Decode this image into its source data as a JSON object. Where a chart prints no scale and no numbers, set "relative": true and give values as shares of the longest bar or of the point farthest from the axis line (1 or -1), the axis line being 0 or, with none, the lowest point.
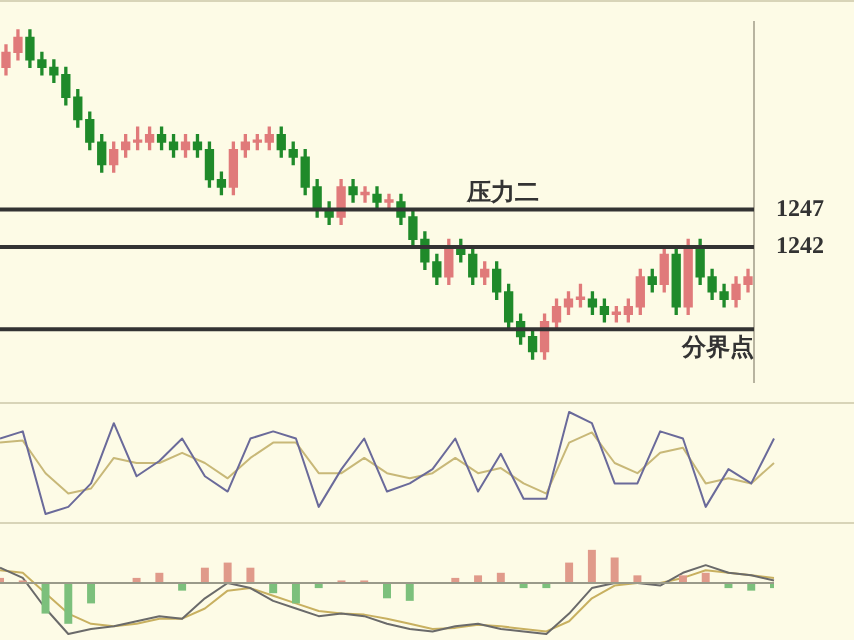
{
  "chart_data": [
    {
      "type": "candlestick",
      "categories": [
        null,
        null,
        null,
        null,
        null,
        null,
        null,
        null,
        null,
        null,
        null,
        null,
        null,
        null,
        null,
        null,
        null,
        null,
        null,
        null,
        null,
        null,
        null,
        null,
        null,
        null,
        null,
        null,
        null,
        null,
        null,
        null,
        null,
        null,
        null,
        null,
        null,
        null,
        null,
        null,
        null,
        null,
        null,
        null,
        null,
        null,
        null,
        null,
        null,
        null,
        null,
        null,
        null,
        null,
        null,
        null,
        null,
        null,
        null,
        null,
        null,
        null,
        null
      ],
      "ohlc": [
        [
          1266,
          1269,
          1265,
          1268
        ],
        [
          1268,
          1271,
          1267,
          1270
        ],
        [
          1270,
          1271,
          1266,
          1267
        ],
        [
          1267,
          1268,
          1265,
          1266
        ],
        [
          1266,
          1267,
          1264,
          1265
        ],
        [
          1265,
          1266,
          1261,
          1262
        ],
        [
          1262,
          1263,
          1258,
          1259
        ],
        [
          1259,
          1260,
          1255,
          1256
        ],
        [
          1256,
          1257,
          1252,
          1253
        ],
        [
          1253,
          1256,
          1252,
          1255
        ],
        [
          1255,
          1257,
          1254,
          1256
        ],
        [
          1256,
          1258,
          1255,
          1256
        ],
        [
          1256,
          1258,
          1255,
          1257
        ],
        [
          1257,
          1258,
          1255,
          1256
        ],
        [
          1256,
          1257,
          1254,
          1255
        ],
        [
          1255,
          1257,
          1254,
          1256
        ],
        [
          1256,
          1257,
          1254,
          1255
        ],
        [
          1255,
          1256,
          1250,
          1251
        ],
        [
          1251,
          1252,
          1249,
          1250
        ],
        [
          1250,
          1256,
          1249,
          1255
        ],
        [
          1255,
          1257,
          1254,
          1256
        ],
        [
          1256,
          1257,
          1255,
          1256
        ],
        [
          1256,
          1258,
          1255,
          1257
        ],
        [
          1257,
          1258,
          1254,
          1255
        ],
        [
          1255,
          1256,
          1253,
          1254
        ],
        [
          1254,
          1255,
          1249,
          1250
        ],
        [
          1250,
          1251,
          1246,
          1247
        ],
        [
          1247,
          1248,
          1245,
          1246
        ],
        [
          1246,
          1251,
          1245,
          1250
        ],
        [
          1250,
          1251,
          1248,
          1249
        ],
        [
          1249,
          1250,
          1248,
          1249
        ],
        [
          1249,
          1250,
          1247,
          1248
        ],
        [
          1248,
          1249,
          1247,
          1248
        ],
        [
          1248,
          1249,
          1245,
          1246
        ],
        [
          1246,
          1247,
          1242,
          1243
        ],
        [
          1243,
          1244,
          1239,
          1240
        ],
        [
          1240,
          1241,
          1237,
          1238
        ],
        [
          1238,
          1243,
          1237,
          1242
        ],
        [
          1242,
          1243,
          1240,
          1241
        ],
        [
          1241,
          1242,
          1237,
          1238
        ],
        [
          1238,
          1240,
          1237,
          1239
        ],
        [
          1239,
          1240,
          1235,
          1236
        ],
        [
          1236,
          1237,
          1231,
          1232
        ],
        [
          1232,
          1233,
          1229,
          1230
        ],
        [
          1230,
          1231,
          1227,
          1228
        ],
        [
          1228,
          1233,
          1227,
          1232
        ],
        [
          1232,
          1235,
          1231,
          1234
        ],
        [
          1234,
          1236,
          1233,
          1235
        ],
        [
          1235,
          1237,
          1234,
          1235
        ],
        [
          1235,
          1236,
          1233,
          1234
        ],
        [
          1234,
          1235,
          1232,
          1233
        ],
        [
          1233,
          1234,
          1232,
          1233
        ],
        [
          1233,
          1235,
          1232,
          1234
        ],
        [
          1234,
          1239,
          1233,
          1238
        ],
        [
          1238,
          1239,
          1236,
          1237
        ],
        [
          1237,
          1242,
          1236,
          1241
        ],
        [
          1241,
          1242,
          1233,
          1234
        ],
        [
          1234,
          1243,
          1233,
          1242
        ],
        [
          1242,
          1243,
          1237,
          1238
        ],
        [
          1238,
          1239,
          1235,
          1236
        ],
        [
          1236,
          1237,
          1234,
          1235
        ],
        [
          1235,
          1238,
          1234,
          1237
        ],
        [
          1237,
          1239,
          1236,
          1238
        ]
      ],
      "colors": [
        "#e07a7a",
        "#e07a7a",
        "#1f8a2a",
        "#1f8a2a",
        "#1f8a2a",
        "#1f8a2a",
        "#1f8a2a",
        "#1f8a2a",
        "#1f8a2a",
        "#e07a7a",
        "#e07a7a",
        "#e07a7a",
        "#e07a7a",
        "#1f8a2a",
        "#1f8a2a",
        "#e07a7a",
        "#1f8a2a",
        "#1f8a2a",
        "#1f8a2a",
        "#e07a7a",
        "#e07a7a",
        "#e07a7a",
        "#e07a7a",
        "#1f8a2a",
        "#1f8a2a",
        "#1f8a2a",
        "#1f8a2a",
        "#1f8a2a",
        "#e07a7a",
        "#1f8a2a",
        "#e07a7a",
        "#1f8a2a",
        "#e07a7a",
        "#1f8a2a",
        "#1f8a2a",
        "#1f8a2a",
        "#1f8a2a",
        "#e07a7a",
        "#1f8a2a",
        "#1f8a2a",
        "#e07a7a",
        "#1f8a2a",
        "#1f8a2a",
        "#1f8a2a",
        "#1f8a2a",
        "#e07a7a",
        "#e07a7a",
        "#e07a7a",
        "#e07a7a",
        "#1f8a2a",
        "#1f8a2a",
        "#e07a7a",
        "#e07a7a",
        "#e07a7a",
        "#1f8a2a",
        "#e07a7a",
        "#1f8a2a",
        "#e07a7a",
        "#1f8a2a",
        "#1f8a2a",
        "#1f8a2a",
        "#e07a7a",
        "#e07a7a"
      ],
      "ylim": [
        1224,
        1272
      ],
      "yticks": [
        {
          "value": 1247,
          "label": "1247"
        },
        {
          "value": 1242,
          "label": "1242"
        }
      ],
      "tick_labels": "y",
      "ref_lines": [
        {
          "axis": "y",
          "value": 1247,
          "color": "#333333"
        },
        {
          "axis": "y",
          "value": 1242,
          "color": "#333333"
        },
        {
          "axis": "y",
          "value": 1231,
          "label": "分界点",
          "color": "#333333"
        }
      ],
      "annotations": [
        {
          "text": "压力二",
          "y": 1247
        }
      ]
    },
    {
      "type": "line",
      "relative": true,
      "marker": "none",
      "categories": [
        null,
        null,
        null,
        null,
        null,
        null,
        null,
        null,
        null,
        null,
        null,
        null,
        null,
        null,
        null,
        null,
        null,
        null,
        null,
        null,
        null,
        null,
        null,
        null,
        null,
        null,
        null,
        null,
        null,
        null,
        null,
        null,
        null,
        null,
        null
      ],
      "series": [
        {
          "color": "#6a6a9a",
          "values": [
            0.74,
            0.81,
            0,
            0.07,
            0.3,
            0.89,
            0.37,
            0.52,
            0.74,
            0.37,
            0.22,
            0.74,
            0.81,
            0.74,
            0.07,
            0.44,
            0.74,
            0.22,
            0.3,
            0.44,
            0.74,
            0.22,
            0.59,
            0.15,
            0.15,
            1,
            0.89,
            0.3,
            0.3,
            0.81,
            0.74,
            0.07,
            0.44,
            0.3,
            0.74
          ]
        },
        {
          "color": "#c8b878",
          "values": [
            0.7,
            0.72,
            0.4,
            0.2,
            0.25,
            0.55,
            0.5,
            0.5,
            0.6,
            0.5,
            0.35,
            0.55,
            0.7,
            0.7,
            0.4,
            0.4,
            0.55,
            0.4,
            0.35,
            0.4,
            0.55,
            0.4,
            0.45,
            0.3,
            0.2,
            0.7,
            0.8,
            0.5,
            0.4,
            0.6,
            0.65,
            0.3,
            0.35,
            0.3,
            0.5
          ]
        }
      ]
    },
    {
      "type": "bar",
      "relative": true,
      "categories": [
        null,
        null,
        null,
        null,
        null,
        null,
        null,
        null,
        null,
        null,
        null,
        null,
        null,
        null,
        null,
        null,
        null,
        null,
        null,
        null,
        null,
        null,
        null,
        null,
        null,
        null,
        null,
        null,
        null,
        null,
        null,
        null,
        null,
        null,
        null
      ],
      "series": [
        {
          "type": "bar",
          "values": [
            0.1,
            0.05,
            -0.6,
            -0.8,
            -0.4,
            0,
            0.1,
            0.2,
            -0.15,
            0.3,
            0.4,
            0.3,
            -0.2,
            -0.4,
            -0.1,
            0.05,
            0.05,
            -0.3,
            -0.35,
            0,
            0.1,
            0.15,
            0.2,
            -0.1,
            -0.1,
            0.4,
            0.65,
            0.5,
            0.15,
            0,
            0.15,
            0.2,
            -0.1,
            -0.15,
            -0.1
          ],
          "colors": [
            "#e09a8a",
            "#e09a8a",
            "#7cc07c",
            "#7cc07c",
            "#7cc07c",
            "#7cc07c",
            "#e09a8a",
            "#e09a8a",
            "#7cc07c",
            "#e09a8a",
            "#e09a8a",
            "#e09a8a",
            "#7cc07c",
            "#7cc07c",
            "#7cc07c",
            "#e09a8a",
            "#e09a8a",
            "#7cc07c",
            "#7cc07c",
            "#7cc07c",
            "#e09a8a",
            "#e09a8a",
            "#e09a8a",
            "#7cc07c",
            "#7cc07c",
            "#e09a8a",
            "#e09a8a",
            "#e09a8a",
            "#e09a8a",
            "#e09a8a",
            "#e09a8a",
            "#e09a8a",
            "#7cc07c",
            "#7cc07c",
            "#7cc07c"
          ]
        },
        {
          "type": "line",
          "color": "#6a6a6a",
          "values": [
            0.3,
            0.1,
            -0.5,
            -1,
            -0.9,
            -0.85,
            -0.75,
            -0.65,
            -0.7,
            -0.3,
            0,
            -0.1,
            -0.35,
            -0.5,
            -0.65,
            -0.6,
            -0.65,
            -0.8,
            -0.9,
            -0.95,
            -0.85,
            -0.8,
            -0.9,
            -0.95,
            -1,
            -0.6,
            -0.1,
            0,
            0,
            -0.05,
            0.2,
            0.35,
            0.2,
            0.15,
            0.05
          ]
        },
        {
          "type": "line",
          "color": "#c8b060",
          "values": [
            0.25,
            0.2,
            -0.2,
            -0.6,
            -0.8,
            -0.85,
            -0.8,
            -0.7,
            -0.7,
            -0.5,
            -0.15,
            -0.1,
            -0.25,
            -0.4,
            -0.55,
            -0.6,
            -0.62,
            -0.7,
            -0.8,
            -0.9,
            -0.88,
            -0.82,
            -0.85,
            -0.9,
            -0.95,
            -0.75,
            -0.3,
            -0.05,
            0,
            0,
            0.1,
            0.25,
            0.2,
            0.15,
            0.1
          ]
        }
      ]
    }
  ]
}
